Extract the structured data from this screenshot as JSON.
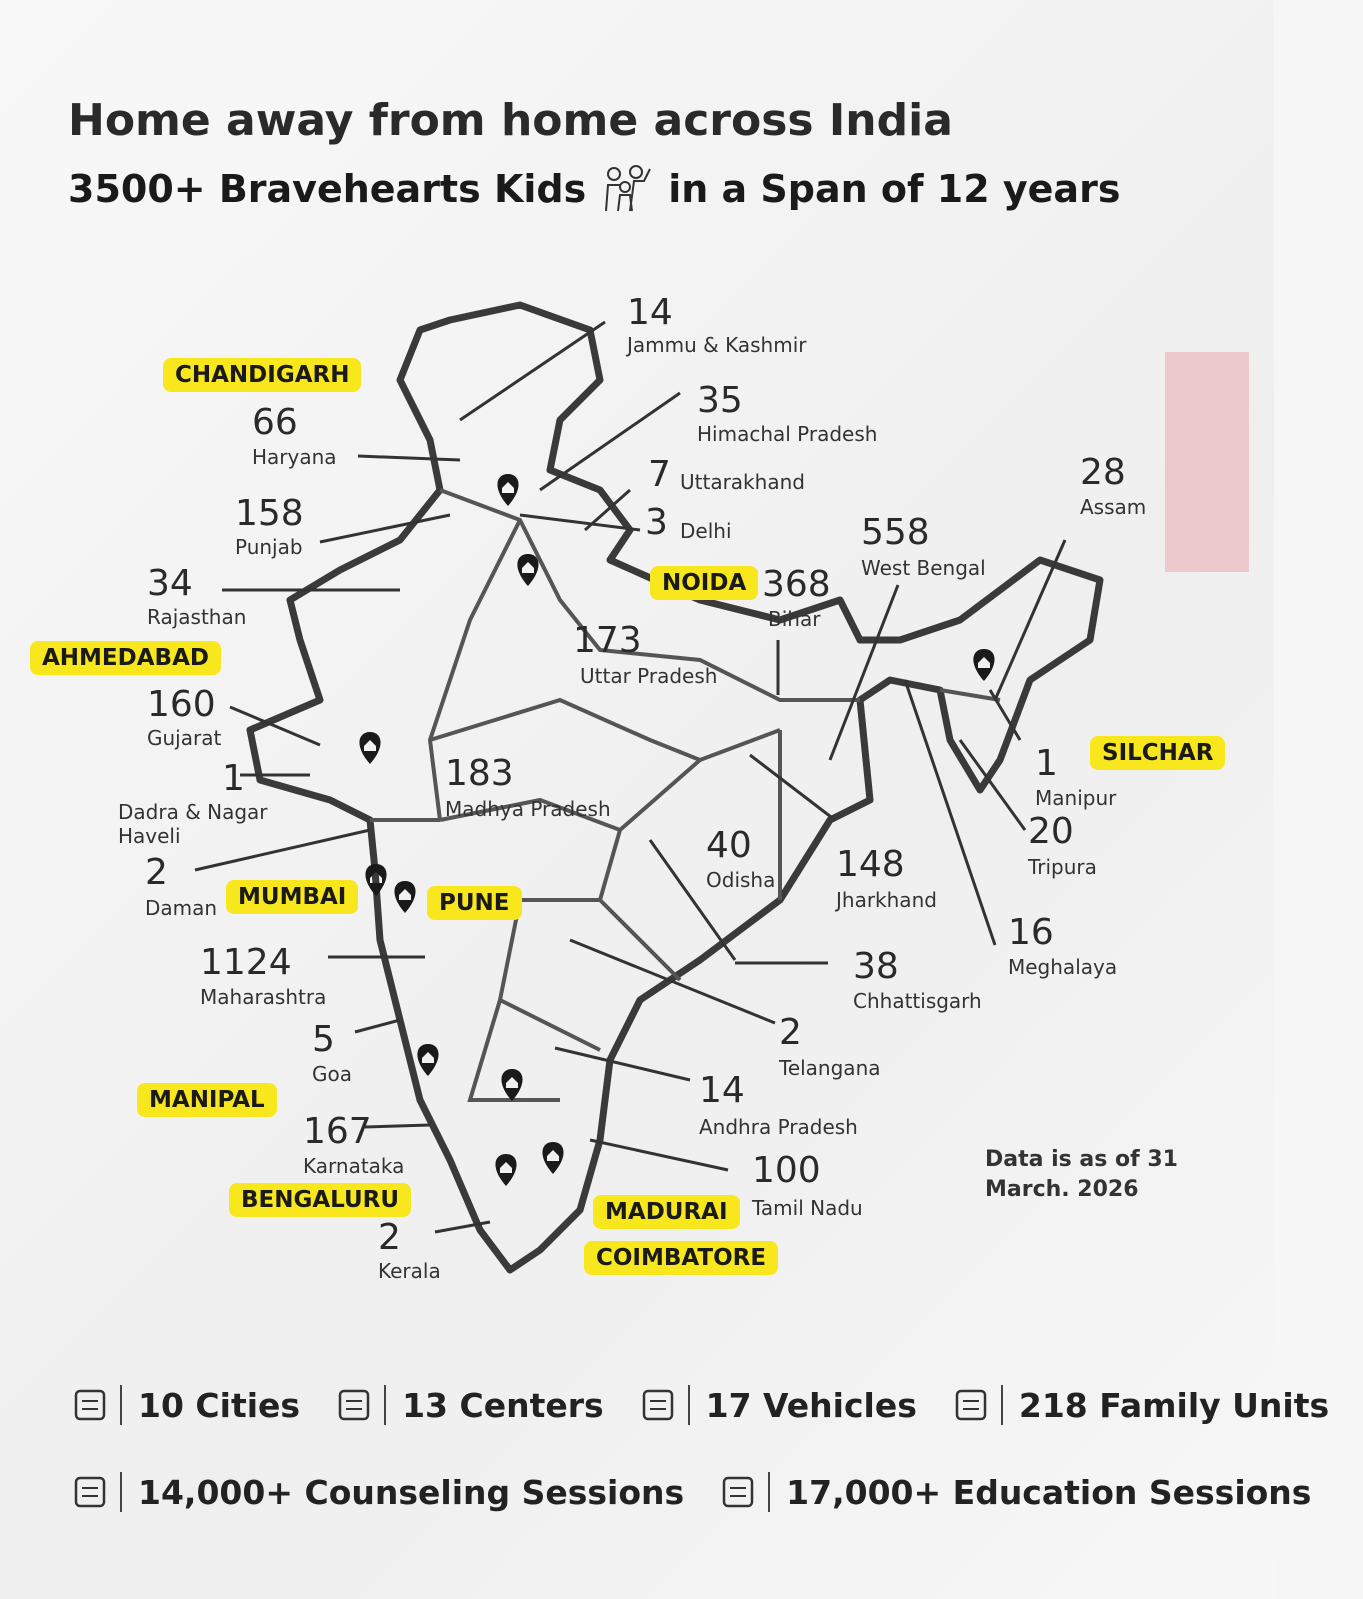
{
  "header": {
    "title": "Home away from home across India",
    "subtitle_start": "3500+ Bravehearts Kids",
    "subtitle_end": "in a Span of 12 years"
  },
  "states": [
    {
      "count": 14,
      "name": "Jammu & Kashmir"
    },
    {
      "count": 35,
      "name": "Himachal Pradesh"
    },
    {
      "count": 66,
      "name": "Haryana"
    },
    {
      "count": 7,
      "name": "Uttarakhand"
    },
    {
      "count": 3,
      "name": "Delhi"
    },
    {
      "count": 158,
      "name": "Punjab"
    },
    {
      "count": 34,
      "name": "Rajasthan"
    },
    {
      "count": 558,
      "name": "West Bengal"
    },
    {
      "count": 368,
      "name": "Bihar"
    },
    {
      "count": 28,
      "name": "Assam"
    },
    {
      "count": 173,
      "name": "Uttar Pradesh"
    },
    {
      "count": 160,
      "name": "Gujarat"
    },
    {
      "count": 1,
      "name": "Dadra & Nagar Haveli"
    },
    {
      "count": 183,
      "name": "Madhya Pradesh"
    },
    {
      "count": 2,
      "name": "Daman"
    },
    {
      "count": 40,
      "name": "Odisha"
    },
    {
      "count": 148,
      "name": "Jharkhand"
    },
    {
      "count": 1,
      "name": "Manipur"
    },
    {
      "count": 20,
      "name": "Tripura"
    },
    {
      "count": 16,
      "name": "Meghalaya"
    },
    {
      "count": 1124,
      "name": "Maharashtra"
    },
    {
      "count": 38,
      "name": "Chhattisgarh"
    },
    {
      "count": 5,
      "name": "Goa"
    },
    {
      "count": 2,
      "name": "Telangana"
    },
    {
      "count": 14,
      "name": "Andhra Pradesh"
    },
    {
      "count": 167,
      "name": "Karnataka"
    },
    {
      "count": 100,
      "name": "Tamil Nadu"
    },
    {
      "count": 2,
      "name": "Kerala"
    }
  ],
  "cities": [
    "CHANDIGARH",
    "AHMEDABAD",
    "NOIDA",
    "MUMBAI",
    "PUNE",
    "SILCHAR",
    "MANIPAL",
    "BENGALURU",
    "MADURAI",
    "COIMBATORE"
  ],
  "note": "Data is as of 31 March. 2026",
  "stats": [
    "10 Cities",
    "13 Centers",
    "17 Vehicles",
    "218 Family Units",
    "14,000+ Counseling Sessions",
    "17,000+ Education Sessions"
  ]
}
